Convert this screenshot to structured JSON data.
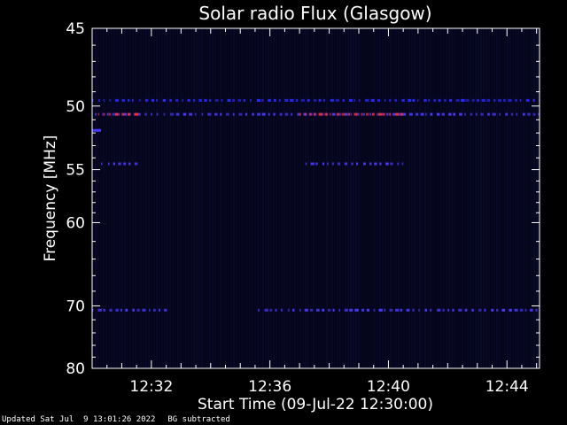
{
  "chart_data": {
    "type": "heatmap",
    "title": "Solar radio Flux (Glasgow)",
    "xlabel": "Start Time (09-Jul-22 12:30:00)",
    "ylabel": "Frequency [MHz]",
    "x_start_minutes": 0,
    "x_end_minutes": 15.1,
    "xlim_time": [
      "12:30:00",
      "12:45:06"
    ],
    "x_ticks": [
      {
        "label": "12:32",
        "minutes": 2
      },
      {
        "label": "12:36",
        "minutes": 6
      },
      {
        "label": "12:40",
        "minutes": 10
      },
      {
        "label": "12:44",
        "minutes": 14
      }
    ],
    "y_scale": "reciprocal",
    "ylim": [
      45,
      80
    ],
    "y_ticks": [
      45,
      50,
      55,
      60,
      70,
      80
    ],
    "background_color": "#05051a",
    "colormap": [
      "#0a0a3a",
      "#2a2aff",
      "#ff3030",
      "#ffffff"
    ],
    "bands": [
      {
        "freq_mhz": 49.6,
        "intensity": 0.35,
        "start_min": 0.0,
        "end_min": 15.1,
        "dashed": true
      },
      {
        "freq_mhz": 50.6,
        "intensity": 0.45,
        "start_min": 0.1,
        "end_min": 15.1,
        "dashed": true
      },
      {
        "freq_mhz": 50.6,
        "intensity": 0.9,
        "start_min": 7.0,
        "end_min": 10.5,
        "dashed": true
      },
      {
        "freq_mhz": 50.6,
        "intensity": 0.85,
        "start_min": 0.2,
        "end_min": 1.6,
        "dashed": true
      },
      {
        "freq_mhz": 51.8,
        "intensity": 0.5,
        "start_min": 0.0,
        "end_min": 0.3,
        "dashed": false
      },
      {
        "freq_mhz": 54.5,
        "intensity": 0.5,
        "start_min": 0.3,
        "end_min": 1.6,
        "dashed": true
      },
      {
        "freq_mhz": 54.5,
        "intensity": 0.45,
        "start_min": 7.2,
        "end_min": 10.5,
        "dashed": true
      },
      {
        "freq_mhz": 70.6,
        "intensity": 0.55,
        "start_min": 0.0,
        "end_min": 2.6,
        "dashed": true
      },
      {
        "freq_mhz": 70.6,
        "intensity": 0.55,
        "start_min": 5.6,
        "end_min": 15.1,
        "dashed": true
      }
    ]
  },
  "footer": {
    "updated": "Updated Sat Jul  9 13:01:26 2022",
    "note": "BG subtracted"
  }
}
